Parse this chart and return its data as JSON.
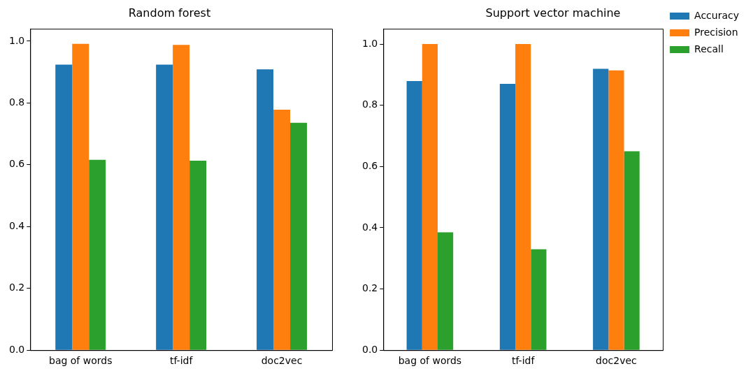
{
  "chart_data": [
    {
      "type": "bar",
      "title": "Random forest",
      "categories": [
        "bag of words",
        "tf-idf",
        "doc2vec"
      ],
      "series": [
        {
          "color": "#1f77b4",
          "values": [
            0.924,
            0.924,
            0.909
          ]
        },
        {
          "color": "#ff7f0e",
          "values": [
            0.991,
            0.988,
            0.778
          ]
        },
        {
          "color": "#2ca02c",
          "values": [
            0.616,
            0.613,
            0.736
          ]
        }
      ],
      "ylim": [
        0,
        1.04
      ],
      "yticks": [
        {
          "value": 0,
          "label": "0.0"
        },
        {
          "value": 0.2,
          "label": "0.2"
        },
        {
          "value": 0.4,
          "label": "0.4"
        },
        {
          "value": 0.6,
          "label": "0.6"
        },
        {
          "value": 0.8,
          "label": "0.8"
        },
        {
          "value": 1,
          "label": "1.0"
        }
      ],
      "grid": false,
      "legend": false
    },
    {
      "type": "bar",
      "title": "Support vector machine",
      "categories": [
        "bag of words",
        "tf-idf",
        "doc2vec"
      ],
      "series": [
        {
          "name": "Accuracy",
          "color": "#1f77b4",
          "values": [
            0.879,
            0.87,
            0.919
          ]
        },
        {
          "name": "Precision",
          "color": "#ff7f0e",
          "values": [
            1.0,
            1.0,
            0.914
          ]
        },
        {
          "name": "Recall",
          "color": "#2ca02c",
          "values": [
            0.385,
            0.33,
            0.65
          ]
        }
      ],
      "ylim": [
        0,
        1.05
      ],
      "yticks": [
        {
          "value": 0,
          "label": "0.0"
        },
        {
          "value": 0.2,
          "label": "0.2"
        },
        {
          "value": 0.4,
          "label": "0.4"
        },
        {
          "value": 0.6,
          "label": "0.6"
        },
        {
          "value": 0.8,
          "label": "0.8"
        },
        {
          "value": 1,
          "label": "1.0"
        }
      ],
      "grid": false,
      "legend": "top right"
    }
  ]
}
